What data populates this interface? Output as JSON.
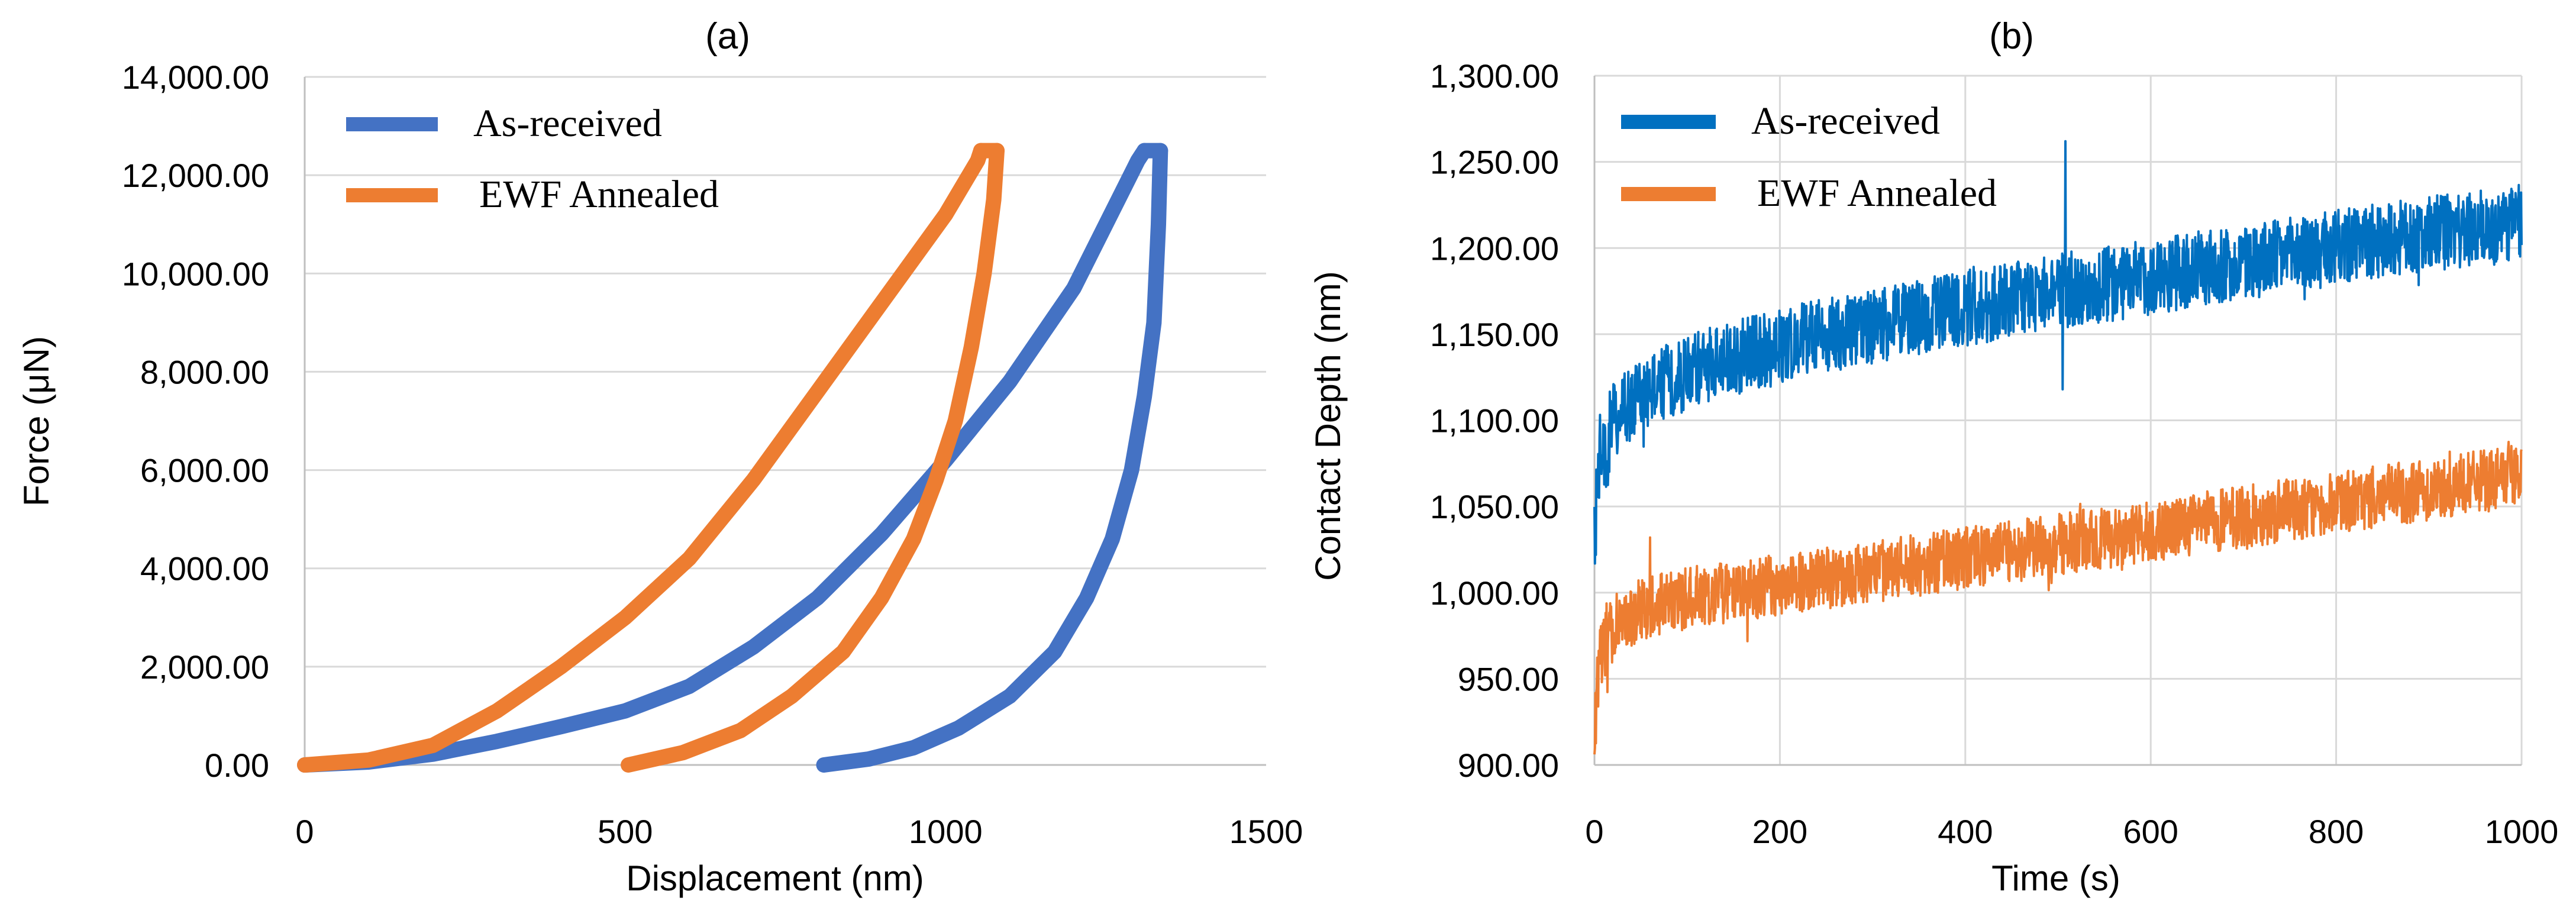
{
  "chart_data": [
    {
      "type": "line",
      "title": "(a)",
      "xlabel": "Displacement (nm)",
      "ylabel": "Force (μN)",
      "xlim": [
        0,
        1500
      ],
      "ylim": [
        0,
        14000
      ],
      "xticks": [
        0,
        500,
        1000,
        1500
      ],
      "yticks": [
        0,
        2000,
        4000,
        6000,
        8000,
        10000,
        12000,
        14000
      ],
      "ytick_labels": [
        "0.00",
        "2,000.00",
        "4,000.00",
        "6,000.00",
        "8,000.00",
        "10,000.00",
        "12,000.00",
        "14,000.00"
      ],
      "grid": "horizontal",
      "legend_position": "top-left",
      "series": [
        {
          "name": "As-received",
          "color": "#4472C4",
          "loading": [
            [
              0,
              0
            ],
            [
              100,
              60
            ],
            [
              200,
              220
            ],
            [
              300,
              480
            ],
            [
              400,
              780
            ],
            [
              500,
              1100
            ],
            [
              600,
              1600
            ],
            [
              700,
              2400
            ],
            [
              800,
              3400
            ],
            [
              900,
              4700
            ],
            [
              1000,
              6200
            ],
            [
              1100,
              7800
            ],
            [
              1200,
              9700
            ],
            [
              1300,
              12300
            ],
            [
              1310,
              12500
            ]
          ],
          "hold": [
            [
              1310,
              12500
            ],
            [
              1335,
              12500
            ]
          ],
          "unloading": [
            [
              1335,
              12500
            ],
            [
              1332,
              11000
            ],
            [
              1325,
              9000
            ],
            [
              1310,
              7500
            ],
            [
              1290,
              6000
            ],
            [
              1260,
              4600
            ],
            [
              1220,
              3400
            ],
            [
              1170,
              2300
            ],
            [
              1100,
              1400
            ],
            [
              1020,
              750
            ],
            [
              950,
              350
            ],
            [
              880,
              120
            ],
            [
              810,
              0
            ]
          ]
        },
        {
          "name": "EWF Annealed",
          "color": "#ED7D31",
          "loading": [
            [
              0,
              0
            ],
            [
              100,
              100
            ],
            [
              200,
              400
            ],
            [
              300,
              1100
            ],
            [
              400,
              2000
            ],
            [
              500,
              3000
            ],
            [
              600,
              4200
            ],
            [
              700,
              5800
            ],
            [
              800,
              7600
            ],
            [
              900,
              9400
            ],
            [
              1000,
              11200
            ],
            [
              1050,
              12300
            ],
            [
              1055,
              12500
            ]
          ],
          "hold": [
            [
              1055,
              12500
            ],
            [
              1080,
              12500
            ]
          ],
          "unloading": [
            [
              1080,
              12500
            ],
            [
              1075,
              11500
            ],
            [
              1060,
              10000
            ],
            [
              1040,
              8500
            ],
            [
              1015,
              7000
            ],
            [
              985,
              5800
            ],
            [
              950,
              4600
            ],
            [
              900,
              3400
            ],
            [
              840,
              2300
            ],
            [
              760,
              1400
            ],
            [
              680,
              700
            ],
            [
              590,
              250
            ],
            [
              505,
              0
            ]
          ]
        }
      ]
    },
    {
      "type": "line",
      "title": "(b)",
      "xlabel": "Time (s)",
      "ylabel": "Contact Depth (nm)",
      "xlim": [
        0,
        1000
      ],
      "ylim": [
        900,
        1300
      ],
      "xticks": [
        0,
        200,
        400,
        600,
        800,
        1000
      ],
      "yticks": [
        900,
        950,
        1000,
        1050,
        1100,
        1150,
        1200,
        1250,
        1300
      ],
      "ytick_labels": [
        "900.00",
        "950.00",
        "1,000.00",
        "1,050.00",
        "1,100.00",
        "1,150.00",
        "1,200.00",
        "1,250.00",
        "1,300.00"
      ],
      "grid": "both",
      "legend_position": "top-left",
      "series": [
        {
          "name": "As-received",
          "color": "#0070C0",
          "trend": [
            [
              0,
              1030
            ],
            [
              5,
              1075
            ],
            [
              20,
              1100
            ],
            [
              50,
              1115
            ],
            [
              100,
              1128
            ],
            [
              200,
              1143
            ],
            [
              300,
              1155
            ],
            [
              400,
              1165
            ],
            [
              500,
              1175
            ],
            [
              600,
              1183
            ],
            [
              700,
              1192
            ],
            [
              800,
              1200
            ],
            [
              900,
              1208
            ],
            [
              1000,
              1215
            ]
          ],
          "noise_amplitude": 22,
          "spikes": [
            [
              508,
              1262
            ],
            [
              505,
              1118
            ]
          ]
        },
        {
          "name": "EWF Annealed",
          "color": "#ED7D31",
          "trend": [
            [
              0,
              922
            ],
            [
              5,
              965
            ],
            [
              20,
              980
            ],
            [
              50,
              990
            ],
            [
              100,
              997
            ],
            [
              200,
              1005
            ],
            [
              300,
              1012
            ],
            [
              400,
              1020
            ],
            [
              500,
              1028
            ],
            [
              600,
              1036
            ],
            [
              700,
              1044
            ],
            [
              800,
              1052
            ],
            [
              900,
              1060
            ],
            [
              1000,
              1068
            ]
          ],
          "noise_amplitude": 18,
          "spikes": [
            [
              60,
              1032
            ]
          ]
        }
      ]
    }
  ]
}
